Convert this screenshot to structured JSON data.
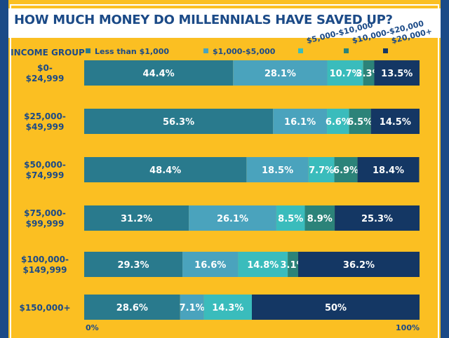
{
  "title": "HOW MUCH MONEY DO MILLENNIALS HAVE SAVED UP?",
  "colors": {
    "background": "#fbbf22",
    "border": "#1b4a87",
    "title_band": "#ffffff",
    "title_text": "#1b4a87",
    "series": [
      "#297a8d",
      "#4aa3bd",
      "#3abcbc",
      "#2c8379",
      "#143764"
    ]
  },
  "chart_data": {
    "type": "bar",
    "orientation": "horizontal",
    "stacked": true,
    "ylabel": "INCOME GROUP",
    "legend_placement": "top",
    "xlim": [
      0,
      100
    ],
    "axis_labels": {
      "start": "0%",
      "end": "100%"
    },
    "grid": false,
    "categories": [
      [
        "$0-",
        "$24,999"
      ],
      [
        "$25,000-",
        "$49,999"
      ],
      [
        "$50,000-",
        "$74,999"
      ],
      [
        "$75,000-",
        "$99,999"
      ],
      [
        "$100,000-",
        "$149,999"
      ],
      [
        "$150,000+"
      ]
    ],
    "series": [
      {
        "name": "Less than $1,000",
        "values": [
          44.4,
          56.3,
          48.4,
          31.2,
          29.3,
          28.6
        ],
        "labels": [
          "44.4%",
          "56.3%",
          "48.4%",
          "31.2%",
          "29.3%",
          "28.6%"
        ]
      },
      {
        "name": "$1,000-$5,000",
        "values": [
          28.1,
          16.1,
          18.5,
          26.1,
          16.6,
          7.1
        ],
        "labels": [
          "28.1%",
          "16.1%",
          "18.5%",
          "26.1%",
          "16.6%",
          "7.1%"
        ]
      },
      {
        "name": "$5,000-$10,000",
        "values": [
          10.7,
          6.6,
          7.7,
          8.5,
          14.8,
          14.3
        ],
        "labels": [
          "10.7%",
          "6.6%",
          "7.7%",
          "8.5%",
          "14.8%",
          "14.3%"
        ]
      },
      {
        "name": "$10,000-$20,000",
        "values": [
          3.3,
          6.5,
          6.9,
          8.9,
          3.1,
          0
        ],
        "labels": [
          "3.3%",
          "6.5%",
          "6.9%",
          "8.9%",
          "3.1%",
          ""
        ]
      },
      {
        "name": "$20,000+",
        "values": [
          13.5,
          14.5,
          18.4,
          25.3,
          36.2,
          50
        ],
        "labels": [
          "13.5%",
          "14.5%",
          "18.4%",
          "25.3%",
          "36.2%",
          "50%"
        ]
      }
    ]
  }
}
